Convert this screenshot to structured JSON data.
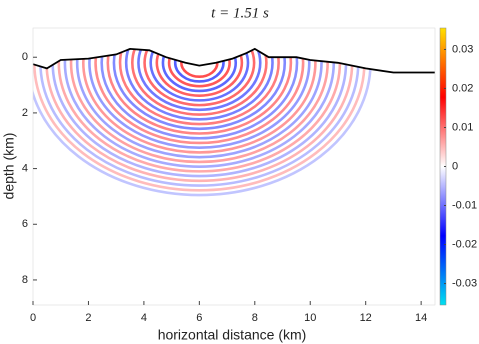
{
  "chart_data": {
    "type": "heatmap",
    "title": "t = 1.51 s",
    "x_label": "horizontal distance (km)",
    "y_label": "depth (km)",
    "xlim": [
      0,
      14.5
    ],
    "xticks": [
      0,
      2,
      4,
      6,
      8,
      10,
      12,
      14
    ],
    "ylim": [
      -1.05,
      8.9
    ],
    "yticks": [
      0,
      2,
      4,
      6,
      8
    ],
    "y_inverted": true,
    "colorbar": {
      "clim": [
        -0.0355,
        0.0355
      ],
      "ticks": [
        {
          "value": 0.03,
          "label": "0.03"
        },
        {
          "value": 0.02,
          "label": "0.02"
        },
        {
          "value": 0.01,
          "label": "0.01"
        },
        0,
        {
          "value": -0.01,
          "label": "-0.01"
        },
        {
          "value": -0.02,
          "label": "-0.02"
        },
        {
          "value": -0.03,
          "label": "-0.03"
        }
      ],
      "colors": [
        "#00e0f0",
        "#0000ff",
        "#ffffff",
        "#ff0000",
        "#ffe000"
      ]
    }
  }
}
